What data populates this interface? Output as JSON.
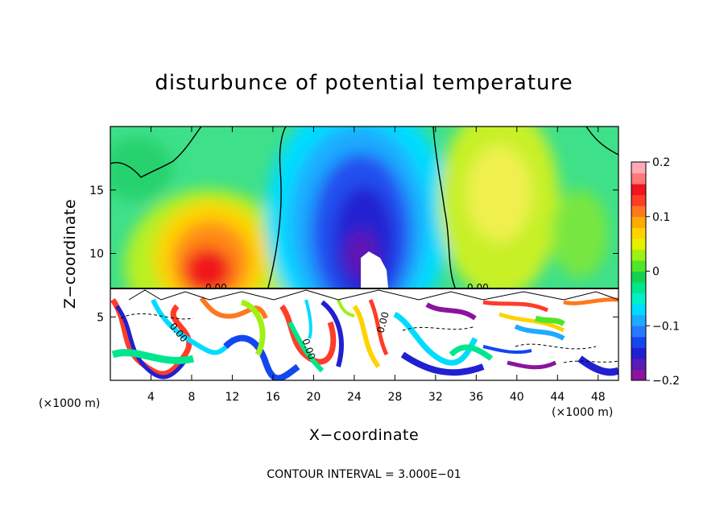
{
  "chart_data": {
    "type": "heatmap",
    "title": "disturbunce of potential temperature",
    "xlabel": "X−coordinate",
    "ylabel": "Z−coordinate",
    "x_unit": "(×1000 m)",
    "y_unit": "(×1000 m)",
    "xlim": [
      0,
      50
    ],
    "ylim": [
      0,
      20
    ],
    "x_ticks": [
      4,
      8,
      12,
      16,
      20,
      24,
      28,
      32,
      36,
      40,
      44,
      48
    ],
    "x_tick_labels": [
      "4",
      "8",
      "12",
      "16",
      "20",
      "24",
      "28",
      "32",
      "36",
      "40",
      "44",
      "48"
    ],
    "y_ticks": [
      5,
      10,
      15
    ],
    "y_tick_labels": [
      "5",
      "10",
      "15"
    ],
    "colorbar": {
      "range": [
        -0.2,
        0.2
      ],
      "ticks": [
        -0.2,
        -0.1,
        0,
        0.1,
        0.2
      ],
      "tick_labels": [
        "−0.2",
        "−0.1",
        "0",
        "0.1",
        "0.2"
      ],
      "colors": [
        "#8a14a0",
        "#5a1ab4",
        "#2020d2",
        "#1446f0",
        "#2878ff",
        "#1eaaff",
        "#00dcff",
        "#00f0c8",
        "#00e68c",
        "#14d250",
        "#50e628",
        "#a0f014",
        "#e6f000",
        "#ffd200",
        "#ffaa00",
        "#ff781e",
        "#ff3c28",
        "#f0141e",
        "#ff7878",
        "#ffaab4"
      ]
    },
    "contour_labels": [
      "0.00",
      "0.00",
      "0.00",
      "0.00",
      "0.00"
    ],
    "note": "CONTOUR INTERVAL = 3.000E−01",
    "layer_boundary_z": 7.4,
    "features": [
      {
        "kind": "warm_anomaly",
        "x": 11,
        "z": 10,
        "peak": 0.12
      },
      {
        "kind": "cold_anomaly",
        "x": 25,
        "z": 11,
        "peak": -0.2
      },
      {
        "kind": "white_region",
        "x": 26,
        "z": 9
      },
      {
        "kind": "turbulent_layer",
        "z_range": [
          0,
          7.4
        ]
      }
    ],
    "grid": false
  }
}
